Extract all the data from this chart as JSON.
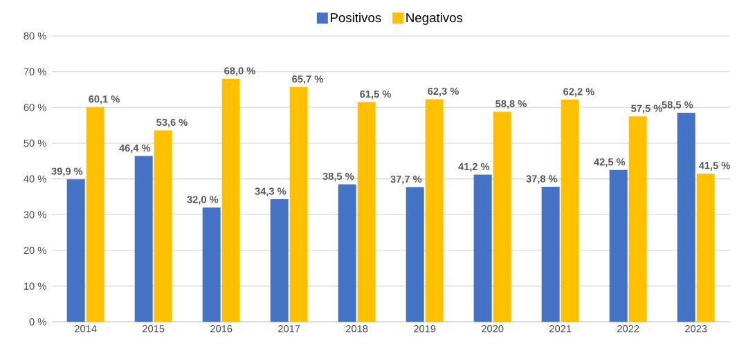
{
  "chart_data": {
    "type": "bar",
    "categories": [
      "2014",
      "2015",
      "2016",
      "2017",
      "2018",
      "2019",
      "2020",
      "2021",
      "2022",
      "2023"
    ],
    "series": [
      {
        "name": "Positivos",
        "color": "#4472c4",
        "values": [
          39.9,
          46.4,
          32.0,
          34.3,
          38.5,
          37.7,
          41.2,
          37.8,
          42.5,
          58.5
        ],
        "value_labels": [
          "39,9 %",
          "46,4 %",
          "32,0 %",
          "34,3 %",
          "38,5 %",
          "37,7 %",
          "41,2 %",
          "37,8 %",
          "42,5 %",
          "58,5 %"
        ]
      },
      {
        "name": "Negativos",
        "color": "#ffc000",
        "values": [
          60.1,
          53.6,
          68.0,
          65.7,
          61.5,
          62.3,
          58.8,
          62.2,
          57.5,
          41.5
        ],
        "value_labels": [
          "60,1 %",
          "53,6 %",
          "68,0 %",
          "65,7 %",
          "61,5 %",
          "62,3 %",
          "58,8 %",
          "62,2 %",
          "57,5 %",
          "41,5 %"
        ]
      }
    ],
    "ylim": [
      0,
      80
    ],
    "yticks": [
      {
        "value": 0,
        "label": "0 %"
      },
      {
        "value": 10,
        "label": "10 %"
      },
      {
        "value": 20,
        "label": "20 %"
      },
      {
        "value": 30,
        "label": "30 %"
      },
      {
        "value": 40,
        "label": "40 %"
      },
      {
        "value": 50,
        "label": "50 %"
      },
      {
        "value": 60,
        "label": "60 %"
      },
      {
        "value": 70,
        "label": "70 %"
      },
      {
        "value": 80,
        "label": "80 %"
      }
    ],
    "grid": "y",
    "legend": "top"
  }
}
